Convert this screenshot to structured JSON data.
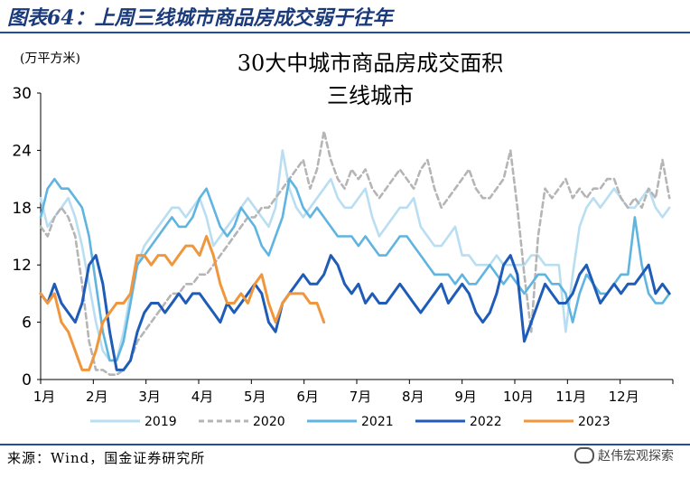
{
  "header": {
    "title": "图表64：上周三线城市商品房成交弱于往年"
  },
  "source": "来源：Wind，国金证券研究所",
  "watermark": "赵伟宏观探索",
  "colors": {
    "rule": "#1f4f9a",
    "title": "#1a3a7a"
  },
  "chart_data": {
    "type": "line",
    "title": "30大中城市商品房成交面积",
    "subtitle": "三线城市",
    "unit_label": "(万平方米)",
    "xlabel": "",
    "ylabel": "",
    "ylim": [
      0,
      30
    ],
    "yticks": [
      0,
      6,
      12,
      18,
      24,
      30
    ],
    "xlim": [
      0,
      366
    ],
    "month_ticks": [
      "1月",
      "2月",
      "3月",
      "4月",
      "5月",
      "6月",
      "7月",
      "8月",
      "9月",
      "10月",
      "11月",
      "12月"
    ],
    "grid": false,
    "legend_position": "bottom",
    "series": [
      {
        "name": "2019",
        "color": "#b9def2",
        "dash": "",
        "width": 2.6,
        "x": [
          0,
          4,
          8,
          12,
          16,
          20,
          24,
          28,
          32,
          36,
          40,
          44,
          48,
          52,
          56,
          60,
          64,
          68,
          72,
          76,
          80,
          84,
          88,
          92,
          96,
          100,
          104,
          108,
          112,
          116,
          120,
          124,
          128,
          132,
          136,
          140,
          144,
          148,
          152,
          156,
          160,
          164,
          168,
          172,
          176,
          180,
          184,
          188,
          192,
          196,
          200,
          204,
          208,
          212,
          216,
          220,
          224,
          228,
          232,
          236,
          240,
          244,
          248,
          252,
          256,
          260,
          264,
          268,
          272,
          276,
          280,
          284,
          288,
          292,
          296,
          300,
          304,
          308,
          312,
          316,
          320,
          324,
          328,
          332,
          336,
          340,
          344,
          348,
          352,
          356,
          360,
          364
        ],
        "y": [
          19,
          16,
          17,
          18,
          19,
          17,
          14,
          10,
          6,
          3,
          2,
          2,
          5,
          9,
          12,
          14,
          15,
          16,
          17,
          18,
          18,
          17,
          18,
          19,
          17,
          14,
          15,
          16,
          17,
          18,
          19,
          18,
          17,
          16,
          18,
          24,
          20,
          18,
          17,
          18,
          19,
          20,
          21,
          19,
          18,
          18,
          19,
          20,
          17,
          15,
          16,
          17,
          18,
          18,
          19,
          16,
          15,
          14,
          14,
          15,
          16,
          13,
          13,
          12,
          12,
          12,
          13,
          12,
          12,
          12,
          12,
          13,
          13,
          12,
          12,
          12,
          5,
          11,
          16,
          18,
          19,
          18,
          19,
          20,
          19,
          18,
          18,
          19,
          20,
          18,
          17,
          18
        ]
      },
      {
        "name": "2020",
        "color": "#b5b5b5",
        "dash": "6,4",
        "width": 2.6,
        "x": [
          0,
          4,
          8,
          12,
          16,
          20,
          24,
          28,
          32,
          36,
          40,
          44,
          48,
          52,
          56,
          60,
          64,
          68,
          72,
          76,
          80,
          84,
          88,
          92,
          96,
          100,
          104,
          108,
          112,
          116,
          120,
          124,
          128,
          132,
          136,
          140,
          144,
          148,
          152,
          156,
          160,
          164,
          168,
          172,
          176,
          180,
          184,
          188,
          192,
          196,
          200,
          204,
          208,
          212,
          216,
          220,
          224,
          228,
          232,
          236,
          240,
          244,
          248,
          252,
          256,
          260,
          264,
          268,
          272,
          276,
          280,
          284,
          288,
          292,
          296,
          300,
          304,
          308,
          312,
          316,
          320,
          324,
          328,
          332,
          336,
          340,
          344,
          348,
          352,
          356,
          360,
          364
        ],
        "y": [
          16,
          15,
          17,
          18,
          17,
          15,
          10,
          4,
          1,
          1,
          0.5,
          0.5,
          1,
          2,
          4,
          5,
          6,
          7,
          8,
          9,
          9,
          10,
          10,
          11,
          11,
          12,
          13,
          14,
          15,
          16,
          17,
          17,
          18,
          18,
          19,
          20,
          21,
          22,
          23,
          20,
          22,
          26,
          23,
          21,
          20,
          22,
          21,
          22,
          20,
          19,
          20,
          21,
          22,
          21,
          20,
          22,
          23,
          20,
          18,
          19,
          20,
          21,
          22,
          20,
          19,
          19,
          20,
          21,
          24,
          18,
          11,
          5,
          15,
          20,
          19,
          20,
          21,
          19,
          20,
          19,
          20,
          20,
          21,
          21,
          19,
          18,
          19,
          18,
          20,
          19,
          23,
          19
        ]
      },
      {
        "name": "2021",
        "color": "#5fb4e0",
        "dash": "",
        "width": 2.6,
        "x": [
          0,
          4,
          8,
          12,
          16,
          20,
          24,
          28,
          32,
          36,
          40,
          44,
          48,
          52,
          56,
          60,
          64,
          68,
          72,
          76,
          80,
          84,
          88,
          92,
          96,
          100,
          104,
          108,
          112,
          116,
          120,
          124,
          128,
          132,
          136,
          140,
          144,
          148,
          152,
          156,
          160,
          164,
          168,
          172,
          176,
          180,
          184,
          188,
          192,
          196,
          200,
          204,
          208,
          212,
          216,
          220,
          224,
          228,
          232,
          236,
          240,
          244,
          248,
          252,
          256,
          260,
          264,
          268,
          272,
          276,
          280,
          284,
          288,
          292,
          296,
          300,
          304,
          308,
          312,
          316,
          320,
          324,
          328,
          332,
          336,
          340,
          344,
          348,
          352,
          356,
          360,
          364
        ],
        "y": [
          17,
          20,
          21,
          20,
          20,
          19,
          18,
          15,
          10,
          5,
          2,
          2,
          4,
          8,
          12,
          13,
          14,
          15,
          16,
          17,
          16,
          16,
          17,
          19,
          20,
          18,
          16,
          15,
          16,
          18,
          17,
          16,
          14,
          13,
          15,
          17,
          21,
          20,
          18,
          17,
          18,
          17,
          16,
          15,
          15,
          15,
          14,
          15,
          14,
          13,
          13,
          14,
          15,
          15,
          14,
          13,
          12,
          11,
          11,
          11,
          10,
          11,
          10,
          10,
          11,
          12,
          11,
          10,
          11,
          10,
          9,
          10,
          11,
          11,
          10,
          10,
          9,
          6,
          9,
          11,
          10,
          9,
          9,
          10,
          11,
          11,
          17,
          12,
          9,
          8,
          8,
          9
        ]
      },
      {
        "name": "2022",
        "color": "#1f5cb8",
        "dash": "",
        "width": 3,
        "x": [
          0,
          4,
          8,
          12,
          16,
          20,
          24,
          28,
          32,
          36,
          40,
          44,
          48,
          52,
          56,
          60,
          64,
          68,
          72,
          76,
          80,
          84,
          88,
          92,
          96,
          100,
          104,
          108,
          112,
          116,
          120,
          124,
          128,
          132,
          136,
          140,
          144,
          148,
          152,
          156,
          160,
          164,
          168,
          172,
          176,
          180,
          184,
          188,
          192,
          196,
          200,
          204,
          208,
          212,
          216,
          220,
          224,
          228,
          232,
          236,
          240,
          244,
          248,
          252,
          256,
          260,
          264,
          268,
          272,
          276,
          280,
          284,
          288,
          292,
          296,
          300,
          304,
          308,
          312,
          316,
          320,
          324,
          328,
          332,
          336,
          340,
          344,
          348,
          352,
          356,
          360,
          364
        ],
        "y": [
          9,
          8,
          10,
          8,
          7,
          6,
          8,
          12,
          13,
          10,
          5,
          1,
          1,
          2,
          5,
          7,
          8,
          8,
          7,
          8,
          9,
          8,
          9,
          9,
          8,
          7,
          6,
          8,
          7,
          8,
          9,
          10,
          9,
          6,
          5,
          8,
          9,
          10,
          11,
          10,
          10,
          11,
          13,
          12,
          10,
          9,
          10,
          8,
          9,
          8,
          8,
          9,
          10,
          9,
          8,
          7,
          8,
          9,
          10,
          8,
          9,
          10,
          9,
          7,
          6,
          7,
          9,
          12,
          13,
          11,
          4,
          6,
          8,
          10,
          9,
          8,
          8,
          9,
          11,
          12,
          10,
          8,
          9,
          10,
          9,
          10,
          10,
          11,
          12,
          9,
          10,
          9
        ]
      },
      {
        "name": "2023",
        "color": "#f0963c",
        "dash": "",
        "width": 3,
        "x": [
          0,
          4,
          8,
          12,
          16,
          20,
          24,
          28,
          32,
          36,
          40,
          44,
          48,
          52,
          56,
          60,
          64,
          68,
          72,
          76,
          80,
          84,
          88,
          92,
          96,
          100,
          104,
          108,
          112,
          116,
          120,
          124,
          128,
          132,
          136,
          140,
          144,
          148,
          152,
          156,
          160,
          164
        ],
        "y": [
          9,
          8,
          9,
          6,
          5,
          3,
          1,
          1,
          3,
          6,
          7,
          8,
          8,
          9,
          13,
          13,
          12,
          13,
          13,
          12,
          13,
          14,
          14,
          13,
          15,
          13,
          10,
          8,
          8,
          9,
          8,
          10,
          11,
          8,
          6,
          8,
          9,
          9,
          9,
          8,
          8,
          6
        ]
      }
    ]
  }
}
